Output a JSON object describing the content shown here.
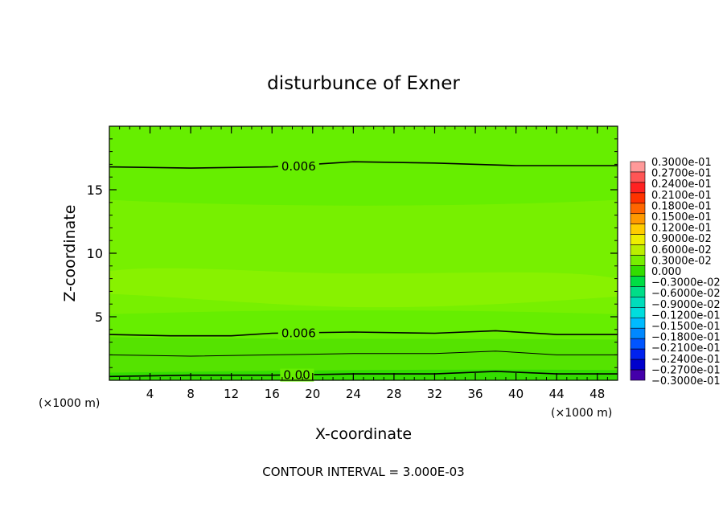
{
  "chart_data": {
    "type": "heatmap",
    "title": "disturbunce of Exner",
    "xlabel": "X-coordinate",
    "ylabel": "Z-coordinate",
    "x_unit_left": "(×1000 m)",
    "x_unit_right": "(×1000 m)",
    "footer": "CONTOUR INTERVAL = 3.000E-03",
    "xlim": [
      0,
      50
    ],
    "ylim": [
      0,
      20
    ],
    "x_ticks": [
      4,
      8,
      12,
      16,
      20,
      24,
      28,
      32,
      36,
      40,
      44,
      48
    ],
    "x_tick_labels": [
      "4",
      "8",
      "12",
      "16",
      "20",
      "24",
      "28",
      "32",
      "36",
      "40",
      "44",
      "48"
    ],
    "y_ticks": [
      5,
      10,
      15
    ],
    "y_tick_labels": [
      "5",
      "10",
      "15"
    ],
    "fill_colors": {
      "base": "#66ee00",
      "band_lower": "#55e300",
      "band_upper": "#77f000",
      "core": "#88f200",
      "lowest": "#33dd00"
    },
    "contours": [
      {
        "label": "0.006",
        "points": [
          [
            0,
            16.8
          ],
          [
            8,
            16.7
          ],
          [
            16,
            16.8
          ],
          [
            24,
            17.2
          ],
          [
            32,
            17.1
          ],
          [
            40,
            16.9
          ],
          [
            50,
            16.9
          ]
        ],
        "label_x": 16.6
      },
      {
        "label": "0.006",
        "points": [
          [
            0,
            3.6
          ],
          [
            6,
            3.5
          ],
          [
            12,
            3.5
          ],
          [
            16,
            3.7
          ],
          [
            24,
            3.8
          ],
          [
            32,
            3.7
          ],
          [
            38,
            3.9
          ],
          [
            44,
            3.6
          ],
          [
            50,
            3.6
          ]
        ],
        "label_x": 16.6
      },
      {
        "label": "",
        "points": [
          [
            0,
            2.0
          ],
          [
            8,
            1.9
          ],
          [
            16,
            2.0
          ],
          [
            24,
            2.1
          ],
          [
            32,
            2.1
          ],
          [
            38,
            2.3
          ],
          [
            44,
            2.0
          ],
          [
            50,
            2.0
          ]
        ],
        "label_x": null
      },
      {
        "label": "0.00",
        "points": [
          [
            0,
            0.3
          ],
          [
            8,
            0.4
          ],
          [
            16,
            0.4
          ],
          [
            24,
            0.5
          ],
          [
            32,
            0.5
          ],
          [
            38,
            0.7
          ],
          [
            44,
            0.5
          ],
          [
            50,
            0.5
          ]
        ],
        "label_x": 16.8
      }
    ],
    "legend": {
      "labels": [
        "0.3000e-01",
        "0.2700e-01",
        "0.2400e-01",
        "0.2100e-01",
        "0.1800e-01",
        "0.1500e-01",
        "0.1200e-01",
        "0.9000e-02",
        "0.6000e-02",
        "0.3000e-02",
        "0.000",
        "−0.3000e-02",
        "−0.6000e-02",
        "−0.9000e-02",
        "−0.1200e-01",
        "−0.1500e-01",
        "−0.1800e-01",
        "−0.2100e-01",
        "−0.2400e-01",
        "−0.2700e-01",
        "−0.3000e-01"
      ],
      "colors": [
        "#ff9999",
        "#ff5555",
        "#ff2222",
        "#ff3300",
        "#ff6600",
        "#ff9900",
        "#ffcc00",
        "#eeee00",
        "#bbee00",
        "#77ee00",
        "#33dd00",
        "#00dd44",
        "#00dd88",
        "#00ddbb",
        "#00dddd",
        "#00bbff",
        "#0088ff",
        "#0055ff",
        "#0022ee",
        "#0000cc",
        "#4400aa"
      ]
    }
  }
}
